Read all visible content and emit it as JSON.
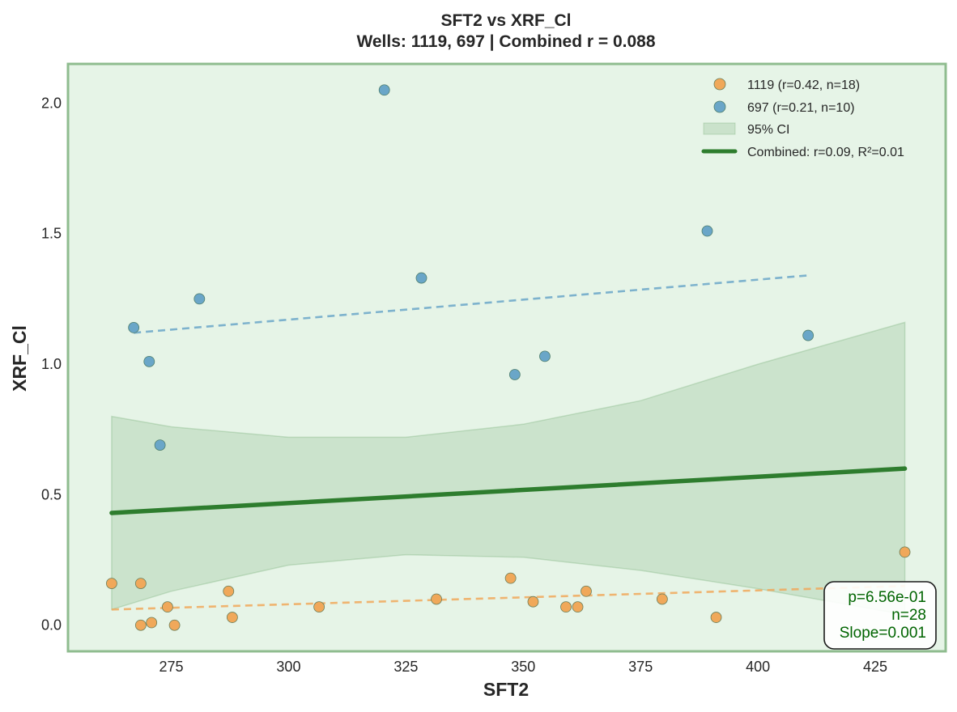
{
  "chart_data": {
    "type": "scatter",
    "title": "SFT2 vs XRF_Cl",
    "subtitle": "Wells: 1119, 697 | Combined r = 0.088",
    "xlabel": "SFT2",
    "ylabel": "XRF_Cl",
    "xlim": [
      253,
      440
    ],
    "ylim": [
      -0.1,
      2.15
    ],
    "x_ticks": [
      "275",
      "300",
      "325",
      "350",
      "375",
      "400",
      "425"
    ],
    "y_ticks": [
      "0.0",
      "0.5",
      "1.0",
      "1.5",
      "2.0"
    ],
    "grid": false,
    "legend_position": "top-right",
    "colors": {
      "background": "#e6f4e7",
      "frame": "#8fbc8f",
      "series_1119": "#f0a85a",
      "series_697": "#6aa6c8",
      "combined_line": "#2e7d2e",
      "ci_band": "#2e7d2e",
      "stats_text": "#006400"
    },
    "series": [
      {
        "name": "1119 (r=0.42, n=18)",
        "points": [
          [
            262.3,
            0.16
          ],
          [
            268.5,
            0.16
          ],
          [
            268.5,
            0.0
          ],
          [
            270.8,
            0.01
          ],
          [
            274.2,
            0.07
          ],
          [
            275.7,
            0.0
          ],
          [
            287.2,
            0.13
          ],
          [
            288.0,
            0.03
          ],
          [
            306.5,
            0.07
          ],
          [
            331.5,
            0.1
          ],
          [
            347.3,
            0.18
          ],
          [
            352.1,
            0.09
          ],
          [
            359.1,
            0.07
          ],
          [
            361.6,
            0.07
          ],
          [
            363.4,
            0.13
          ],
          [
            379.6,
            0.1
          ],
          [
            391.1,
            0.03
          ],
          [
            431.3,
            0.28
          ]
        ],
        "trend": [
          [
            262.3,
            0.06
          ],
          [
            431.3,
            0.15
          ]
        ]
      },
      {
        "name": "697 (r=0.21, n=10)",
        "points": [
          [
            267.0,
            1.14
          ],
          [
            270.3,
            1.01
          ],
          [
            272.6,
            0.69
          ],
          [
            281.0,
            1.25
          ],
          [
            320.4,
            2.05
          ],
          [
            328.3,
            1.33
          ],
          [
            348.2,
            0.96
          ],
          [
            354.6,
            1.03
          ],
          [
            389.2,
            1.51
          ],
          [
            410.7,
            1.11
          ]
        ],
        "trend": [
          [
            267.0,
            1.12
          ],
          [
            410.7,
            1.34
          ]
        ]
      }
    ],
    "ci_label": "95% CI",
    "combined": {
      "label": "Combined: r=0.09, R²=0.01",
      "line": [
        [
          262.3,
          0.43
        ],
        [
          431.3,
          0.6
        ]
      ],
      "ci_upper": [
        [
          262.3,
          0.8
        ],
        [
          275,
          0.76
        ],
        [
          300,
          0.72
        ],
        [
          325,
          0.72
        ],
        [
          350,
          0.77
        ],
        [
          375,
          0.86
        ],
        [
          400,
          1.0
        ],
        [
          431.3,
          1.16
        ]
      ],
      "ci_lower": [
        [
          262.3,
          0.06
        ],
        [
          275,
          0.13
        ],
        [
          300,
          0.23
        ],
        [
          325,
          0.27
        ],
        [
          350,
          0.26
        ],
        [
          375,
          0.21
        ],
        [
          400,
          0.14
        ],
        [
          431.3,
          0.04
        ]
      ]
    },
    "stats_box": {
      "p": "p=6.56e-01",
      "n": "n=28",
      "slope": "Slope=0.001"
    }
  }
}
